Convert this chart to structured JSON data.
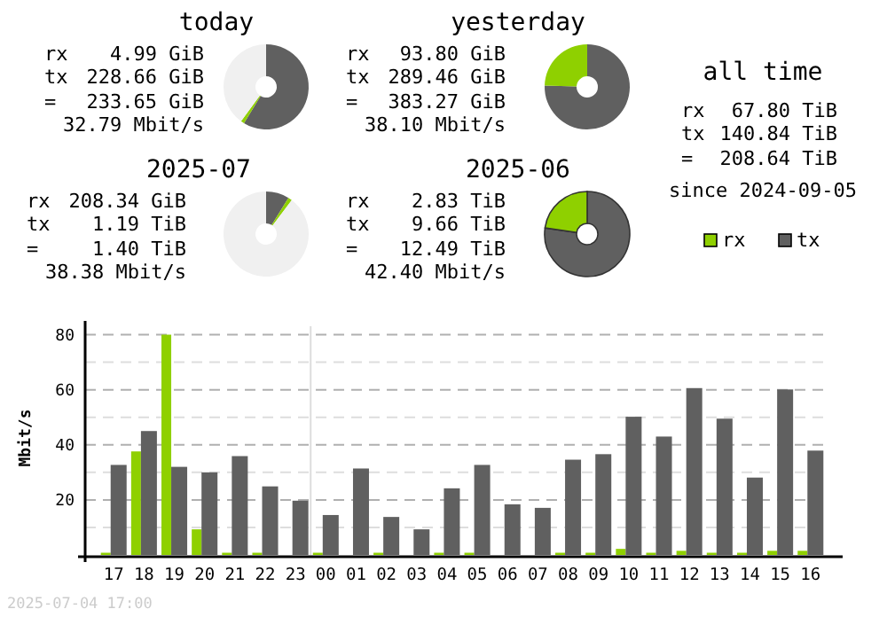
{
  "chart_data": [
    {
      "type": "donut",
      "title": "today",
      "categories": [
        null,
        null,
        null
      ],
      "values": [
        58.7,
        1.3,
        40
      ],
      "colors": [
        "#606060",
        "#8fd000",
        "#f0f0f0"
      ],
      "annotations": [
        "rx 4.99 GiB",
        "tx 228.66 GiB",
        "= 233.65 GiB",
        "32.79 Mbit/s"
      ]
    },
    {
      "type": "donut",
      "title": "yesterday",
      "categories": [
        null,
        null,
        null
      ],
      "values": [
        75.5,
        24.5,
        0
      ],
      "colors": [
        "#606060",
        "#8fd000",
        "#f0f0f0"
      ],
      "annotations": [
        "rx 93.80 GiB",
        "tx 289.46 GiB",
        "= 383.27 GiB",
        "38.10 Mbit/s"
      ]
    },
    {
      "type": "other",
      "title": "all time",
      "annotations": [
        "rx 67.80 TiB",
        "tx 140.84 TiB",
        "= 208.64 TiB",
        "since 2024-09-05"
      ]
    },
    {
      "type": "donut",
      "title": "2025-07",
      "categories": [
        null,
        null,
        null
      ],
      "values": [
        8.8,
        1.5,
        89.7
      ],
      "colors": [
        "#606060",
        "#8fd000",
        "#f0f0f0"
      ],
      "annotations": [
        "rx 208.34 GiB",
        "tx 1.19 TiB",
        "= 1.40 TiB",
        "38.38 Mbit/s"
      ]
    },
    {
      "type": "donut",
      "title": "2025-06",
      "categories": [
        "tx",
        "rx",
        null
      ],
      "values": [
        77.3,
        22.7,
        0
      ],
      "colors": [
        "#606060",
        "#8fd000",
        "#f0f0f0"
      ],
      "legend": "right",
      "annotations": [
        "rx 2.83 TiB",
        "tx 9.66 TiB",
        "= 12.49 TiB",
        "42.40 Mbit/s"
      ]
    },
    {
      "type": "bar",
      "ylabel": "Mbit/s",
      "categories": [
        "17",
        "18",
        "19",
        "20",
        "21",
        "22",
        "23",
        "00",
        "01",
        "02",
        "03",
        "04",
        "05",
        "06",
        "07",
        "08",
        "09",
        "10",
        "11",
        "12",
        "13",
        "14",
        "15",
        "16"
      ],
      "series": [
        {
          "color": "#8fd000",
          "values": [
            0.8,
            37.6,
            80,
            9.3,
            0.8,
            0.8,
            0,
            0.8,
            0,
            0.8,
            0,
            0.8,
            0.8,
            0,
            0,
            0.8,
            0.8,
            2.2,
            0.8,
            1.5,
            0.8,
            0.8,
            1.5,
            1.5
          ]
        },
        {
          "color": "#606060",
          "values": [
            32.7,
            45,
            32,
            30,
            35.9,
            24.9,
            19.7,
            14.5,
            31.4,
            13.8,
            9.3,
            24.2,
            32.7,
            18.4,
            17.1,
            34.6,
            36.6,
            50.2,
            43,
            60.6,
            49.5,
            28.1,
            60.1,
            37.9
          ]
        }
      ],
      "ylim": [
        0,
        85
      ],
      "yticks": [
        {
          "value": 0,
          "label": null
        },
        {
          "value": 10,
          "label": null
        },
        20,
        {
          "value": 30,
          "label": null
        },
        40,
        {
          "value": 50,
          "label": null
        },
        60,
        {
          "value": 70,
          "label": null
        },
        80
      ],
      "grid": "y",
      "ref_lines": [
        {
          "axis": "x",
          "value": "00",
          "color": "#dddddd"
        }
      ],
      "annotations": [
        "2025-07-04 17:00"
      ]
    }
  ]
}
